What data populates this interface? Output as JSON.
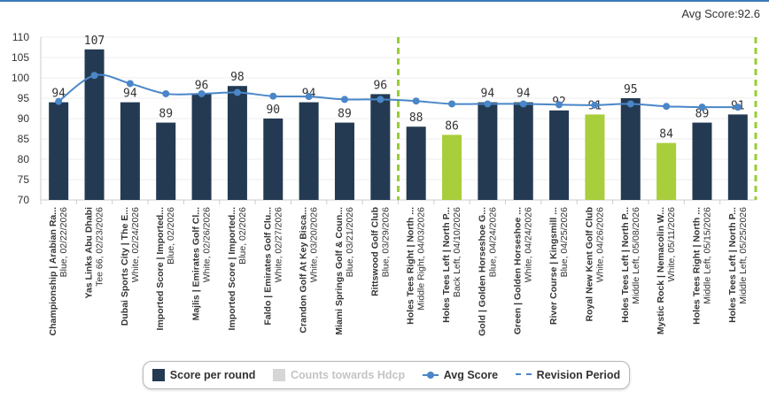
{
  "avg_score_label": "Avg Score:92.6",
  "colors": {
    "bar": "#233a52",
    "bar_highlight": "#a8ce3b",
    "avg_line": "#4a86c8",
    "revision_line": "#99cc33",
    "axis_text": "#333333",
    "grid": "#eeeeee"
  },
  "legend": {
    "score_per_round": "Score per round",
    "counts_towards_hdcp": "Counts towards Hdcp",
    "avg_score": "Avg Score",
    "revision_period": "Revision Period"
  },
  "chart_data": {
    "type": "bar",
    "ylim": [
      70,
      110
    ],
    "yticks": [
      70,
      75,
      80,
      85,
      90,
      95,
      100,
      105,
      110
    ],
    "categories": [
      {
        "name": "Championship | Arabian Ra...",
        "detail": "Blue, 02/22/2026"
      },
      {
        "name": "Yas Links Abu Dhabi",
        "detail": "Tee 66, 02/23/2026"
      },
      {
        "name": "Dubai Sports City | The E...",
        "detail": "White, 02/24/2026"
      },
      {
        "name": "Imported Score | Imported...",
        "detail": "Blue, 02/2026"
      },
      {
        "name": "Majlis | Emirates Golf Cl...",
        "detail": "White, 02/26/2026"
      },
      {
        "name": "Imported Score | Imported...",
        "detail": "Blue, 02/2026"
      },
      {
        "name": "Faldo | Emirates Golf Clu...",
        "detail": "White, 02/27/2026"
      },
      {
        "name": "Crandon Golf At Key Bisca...",
        "detail": "White, 03/20/2026"
      },
      {
        "name": "Miami Springs Golf & Coun...",
        "detail": "Blue, 03/21/2026"
      },
      {
        "name": "Rittswood Golf Club",
        "detail": "Blue, 03/29/2026"
      },
      {
        "name": "Holes Tees Right | North ...",
        "detail": "Middle Right, 04/03/2026"
      },
      {
        "name": "Holes Tees Left | North P...",
        "detail": "Back Left, 04/10/2026"
      },
      {
        "name": "Gold | Golden Horseshoe G...",
        "detail": "Blue, 04/24/2026"
      },
      {
        "name": "Green | Golden Horseshoe ...",
        "detail": "White, 04/24/2026"
      },
      {
        "name": "River Course | Kingsmill ...",
        "detail": "Blue, 04/25/2026"
      },
      {
        "name": "Royal New Kent Golf Club",
        "detail": "White, 04/26/2026"
      },
      {
        "name": "Holes Tees Left | North P...",
        "detail": "Middle Left, 05/08/2026"
      },
      {
        "name": "Mystic Rock | Nemacolin W...",
        "detail": "White, 05/11/2026"
      },
      {
        "name": "Holes Tees Right | North ...",
        "detail": "Middle Left, 05/15/2026"
      },
      {
        "name": "Holes Tees Left | North P...",
        "detail": "Middle Left, 05/25/2026"
      }
    ],
    "series": [
      {
        "name": "Score per round",
        "type": "bar",
        "values": [
          94,
          107,
          94,
          89,
          96,
          98,
          90,
          94,
          89,
          96,
          88,
          86,
          94,
          94,
          92,
          91,
          95,
          84,
          89,
          91
        ],
        "highlighted": [
          false,
          false,
          false,
          false,
          false,
          false,
          false,
          false,
          false,
          false,
          false,
          true,
          false,
          false,
          false,
          true,
          false,
          true,
          false,
          false
        ]
      },
      {
        "name": "Avg Score",
        "type": "line",
        "values": [
          94.2,
          100.6,
          98.6,
          96.1,
          96.1,
          96.4,
          95.5,
          95.4,
          94.7,
          94.7,
          94.3,
          93.6,
          93.6,
          93.6,
          93.4,
          93.3,
          93.6,
          93.0,
          92.8,
          92.8
        ]
      }
    ],
    "revision_periods": [
      {
        "from": 9.5,
        "to": 19.5
      }
    ]
  }
}
